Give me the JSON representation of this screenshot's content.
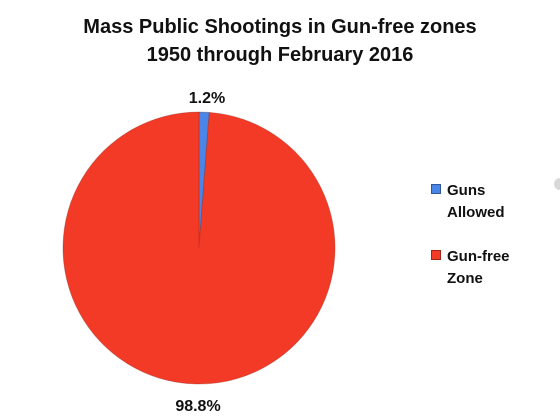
{
  "title": {
    "line1": "Mass Public Shootings in Gun-free zones",
    "line2": "1950 through February 2016"
  },
  "chart_data": {
    "type": "pie",
    "title": "Mass Public Shootings in Gun-free zones 1950 through February 2016",
    "slices": [
      {
        "name": "Guns Allowed",
        "value": 1.2,
        "label": "1.2%",
        "color": "#4a86e8"
      },
      {
        "name": "Gun-free Zone",
        "value": 98.8,
        "label": "98.8%",
        "color": "#f23a27"
      }
    ],
    "legend_position": "right"
  },
  "legend": {
    "items": [
      {
        "label": "Guns\nAllowed",
        "color": "#4a86e8"
      },
      {
        "label": "Gun-free\nZone",
        "color": "#f23a27"
      }
    ]
  }
}
